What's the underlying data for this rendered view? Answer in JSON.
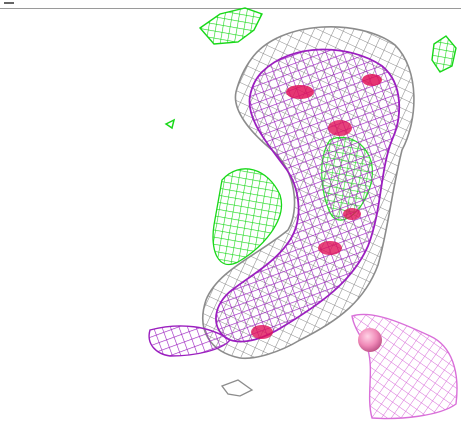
{
  "scene": {
    "description_kind": "molecular-electron-density-mesh",
    "colors": {
      "grey_mesh": "#8c8c8c",
      "purple_mesh": "#9b1fbf",
      "pink_mesh": "#d96fd9",
      "green_mesh": "#18d818",
      "red_core": "#e0135a",
      "atom_sphere": "#f08ab8",
      "background": "#ffffff"
    }
  }
}
